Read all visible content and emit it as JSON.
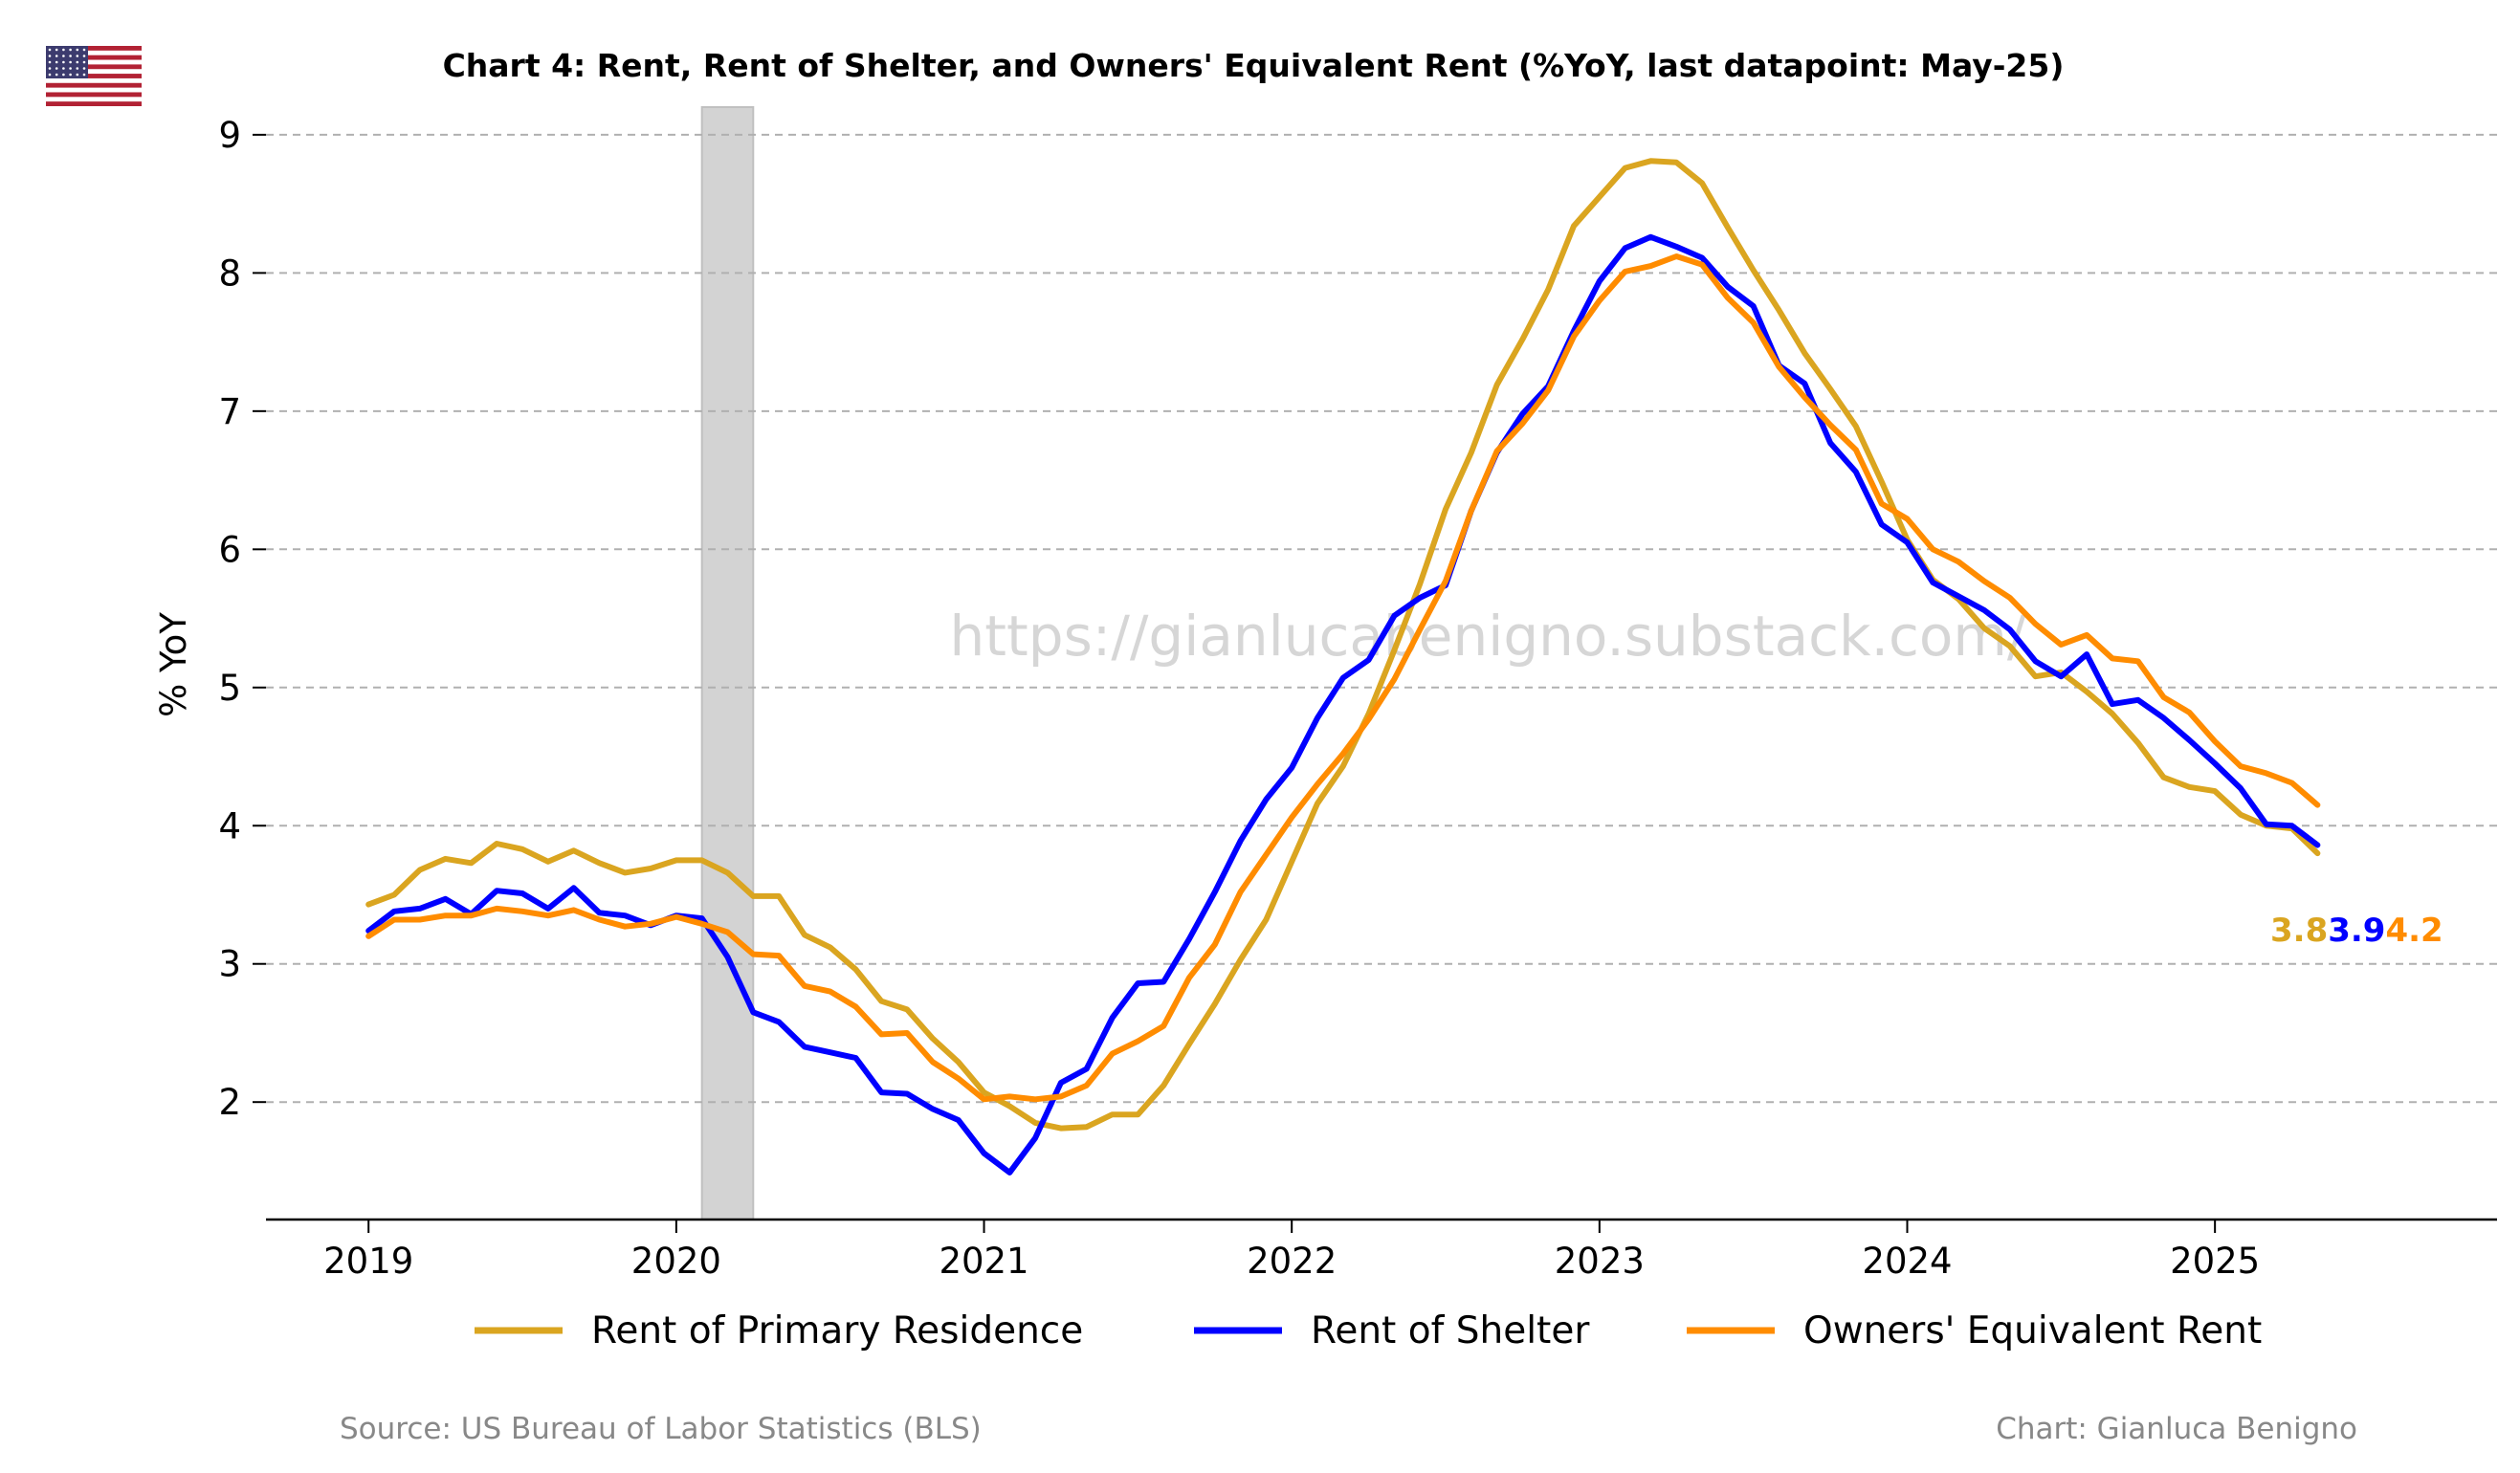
{
  "title": "Chart 4: Rent, Rent of Shelter, and Owners' Equivalent Rent (%YoY, last datapoint: May-25)",
  "watermark": "https://gianlucabenigno.substack.com/",
  "footer": {
    "source": "Source: US Bureau of Labor Statistics (BLS)",
    "credit": "Chart: Gianluca Benigno"
  },
  "flag_icon": "us-flag-icon",
  "chart_data": {
    "type": "line",
    "title": "Chart 4: Rent, Rent of Shelter, and Owners' Equivalent Rent (%YoY, last datapoint: May-25)",
    "xlabel": "",
    "ylabel": "% YoY",
    "x_start": "2019-01",
    "x_end": "2025-05",
    "x_frequency": "monthly",
    "xlim": [
      "2018-09",
      "2025-12"
    ],
    "ylim": [
      1.15,
      9.2
    ],
    "x_ticks": [
      "2019",
      "2020",
      "2021",
      "2022",
      "2023",
      "2024",
      "2025"
    ],
    "y_ticks": [
      2,
      3,
      4,
      5,
      6,
      7,
      8,
      9
    ],
    "grid": "horizontal dashed",
    "legend_position": "bottom",
    "shaded_period": {
      "start": "2020-02",
      "end": "2020-04"
    },
    "end_labels": [
      {
        "text": "3.8",
        "color": "#DAA520"
      },
      {
        "text": "3.9",
        "color": "#0000FF"
      },
      {
        "text": "4.2",
        "color": "#FF8C00"
      }
    ],
    "series": [
      {
        "name": "Rent of Primary Residence",
        "color": "#DAA520",
        "values": [
          3.43,
          3.5,
          3.68,
          3.76,
          3.73,
          3.87,
          3.83,
          3.74,
          3.82,
          3.73,
          3.66,
          3.69,
          3.75,
          3.75,
          3.66,
          3.49,
          3.49,
          3.21,
          3.12,
          2.96,
          2.73,
          2.67,
          2.46,
          2.29,
          2.07,
          1.97,
          1.85,
          1.81,
          1.82,
          1.91,
          1.91,
          2.12,
          2.42,
          2.71,
          3.03,
          3.32,
          3.74,
          4.16,
          4.43,
          4.81,
          5.27,
          5.75,
          6.29,
          6.7,
          7.19,
          7.52,
          7.88,
          8.34,
          8.55,
          8.76,
          8.81,
          8.8,
          8.65,
          8.33,
          8.02,
          7.73,
          7.42,
          7.16,
          6.89,
          6.49,
          6.07,
          5.78,
          5.64,
          5.43,
          5.3,
          5.08,
          5.11,
          4.97,
          4.81,
          4.6,
          4.35,
          4.28,
          4.25,
          4.08,
          4.0,
          3.98,
          3.8
        ]
      },
      {
        "name": "Rent of Shelter",
        "color": "#0000FF",
        "values": [
          3.24,
          3.38,
          3.4,
          3.47,
          3.36,
          3.53,
          3.51,
          3.4,
          3.55,
          3.37,
          3.35,
          3.28,
          3.35,
          3.33,
          3.05,
          2.65,
          2.58,
          2.4,
          2.36,
          2.32,
          2.07,
          2.06,
          1.95,
          1.87,
          1.63,
          1.49,
          1.74,
          2.14,
          2.24,
          2.61,
          2.86,
          2.87,
          3.18,
          3.52,
          3.89,
          4.19,
          4.42,
          4.78,
          5.07,
          5.2,
          5.52,
          5.65,
          5.74,
          6.28,
          6.7,
          6.98,
          7.18,
          7.58,
          7.94,
          8.18,
          8.26,
          8.19,
          8.11,
          7.9,
          7.76,
          7.33,
          7.2,
          6.77,
          6.56,
          6.18,
          6.05,
          5.76,
          5.66,
          5.56,
          5.42,
          5.19,
          5.08,
          5.24,
          4.88,
          4.91,
          4.78,
          4.62,
          4.45,
          4.27,
          4.01,
          4.0,
          3.86
        ]
      },
      {
        "name": "Owners' Equivalent Rent",
        "color": "#FF8C00",
        "values": [
          3.2,
          3.32,
          3.32,
          3.35,
          3.35,
          3.4,
          3.38,
          3.35,
          3.39,
          3.32,
          3.27,
          3.29,
          3.34,
          3.29,
          3.23,
          3.07,
          3.06,
          2.84,
          2.8,
          2.69,
          2.49,
          2.5,
          2.29,
          2.17,
          2.02,
          2.04,
          2.02,
          2.04,
          2.12,
          2.35,
          2.44,
          2.55,
          2.9,
          3.14,
          3.52,
          3.79,
          4.06,
          4.3,
          4.52,
          4.77,
          5.06,
          5.42,
          5.77,
          6.28,
          6.71,
          6.91,
          7.15,
          7.54,
          7.8,
          8.01,
          8.05,
          8.12,
          8.06,
          7.82,
          7.64,
          7.32,
          7.1,
          6.9,
          6.72,
          6.33,
          6.22,
          6.0,
          5.91,
          5.77,
          5.65,
          5.46,
          5.31,
          5.38,
          5.21,
          5.19,
          4.93,
          4.82,
          4.61,
          4.43,
          4.38,
          4.31,
          4.15
        ]
      }
    ]
  }
}
